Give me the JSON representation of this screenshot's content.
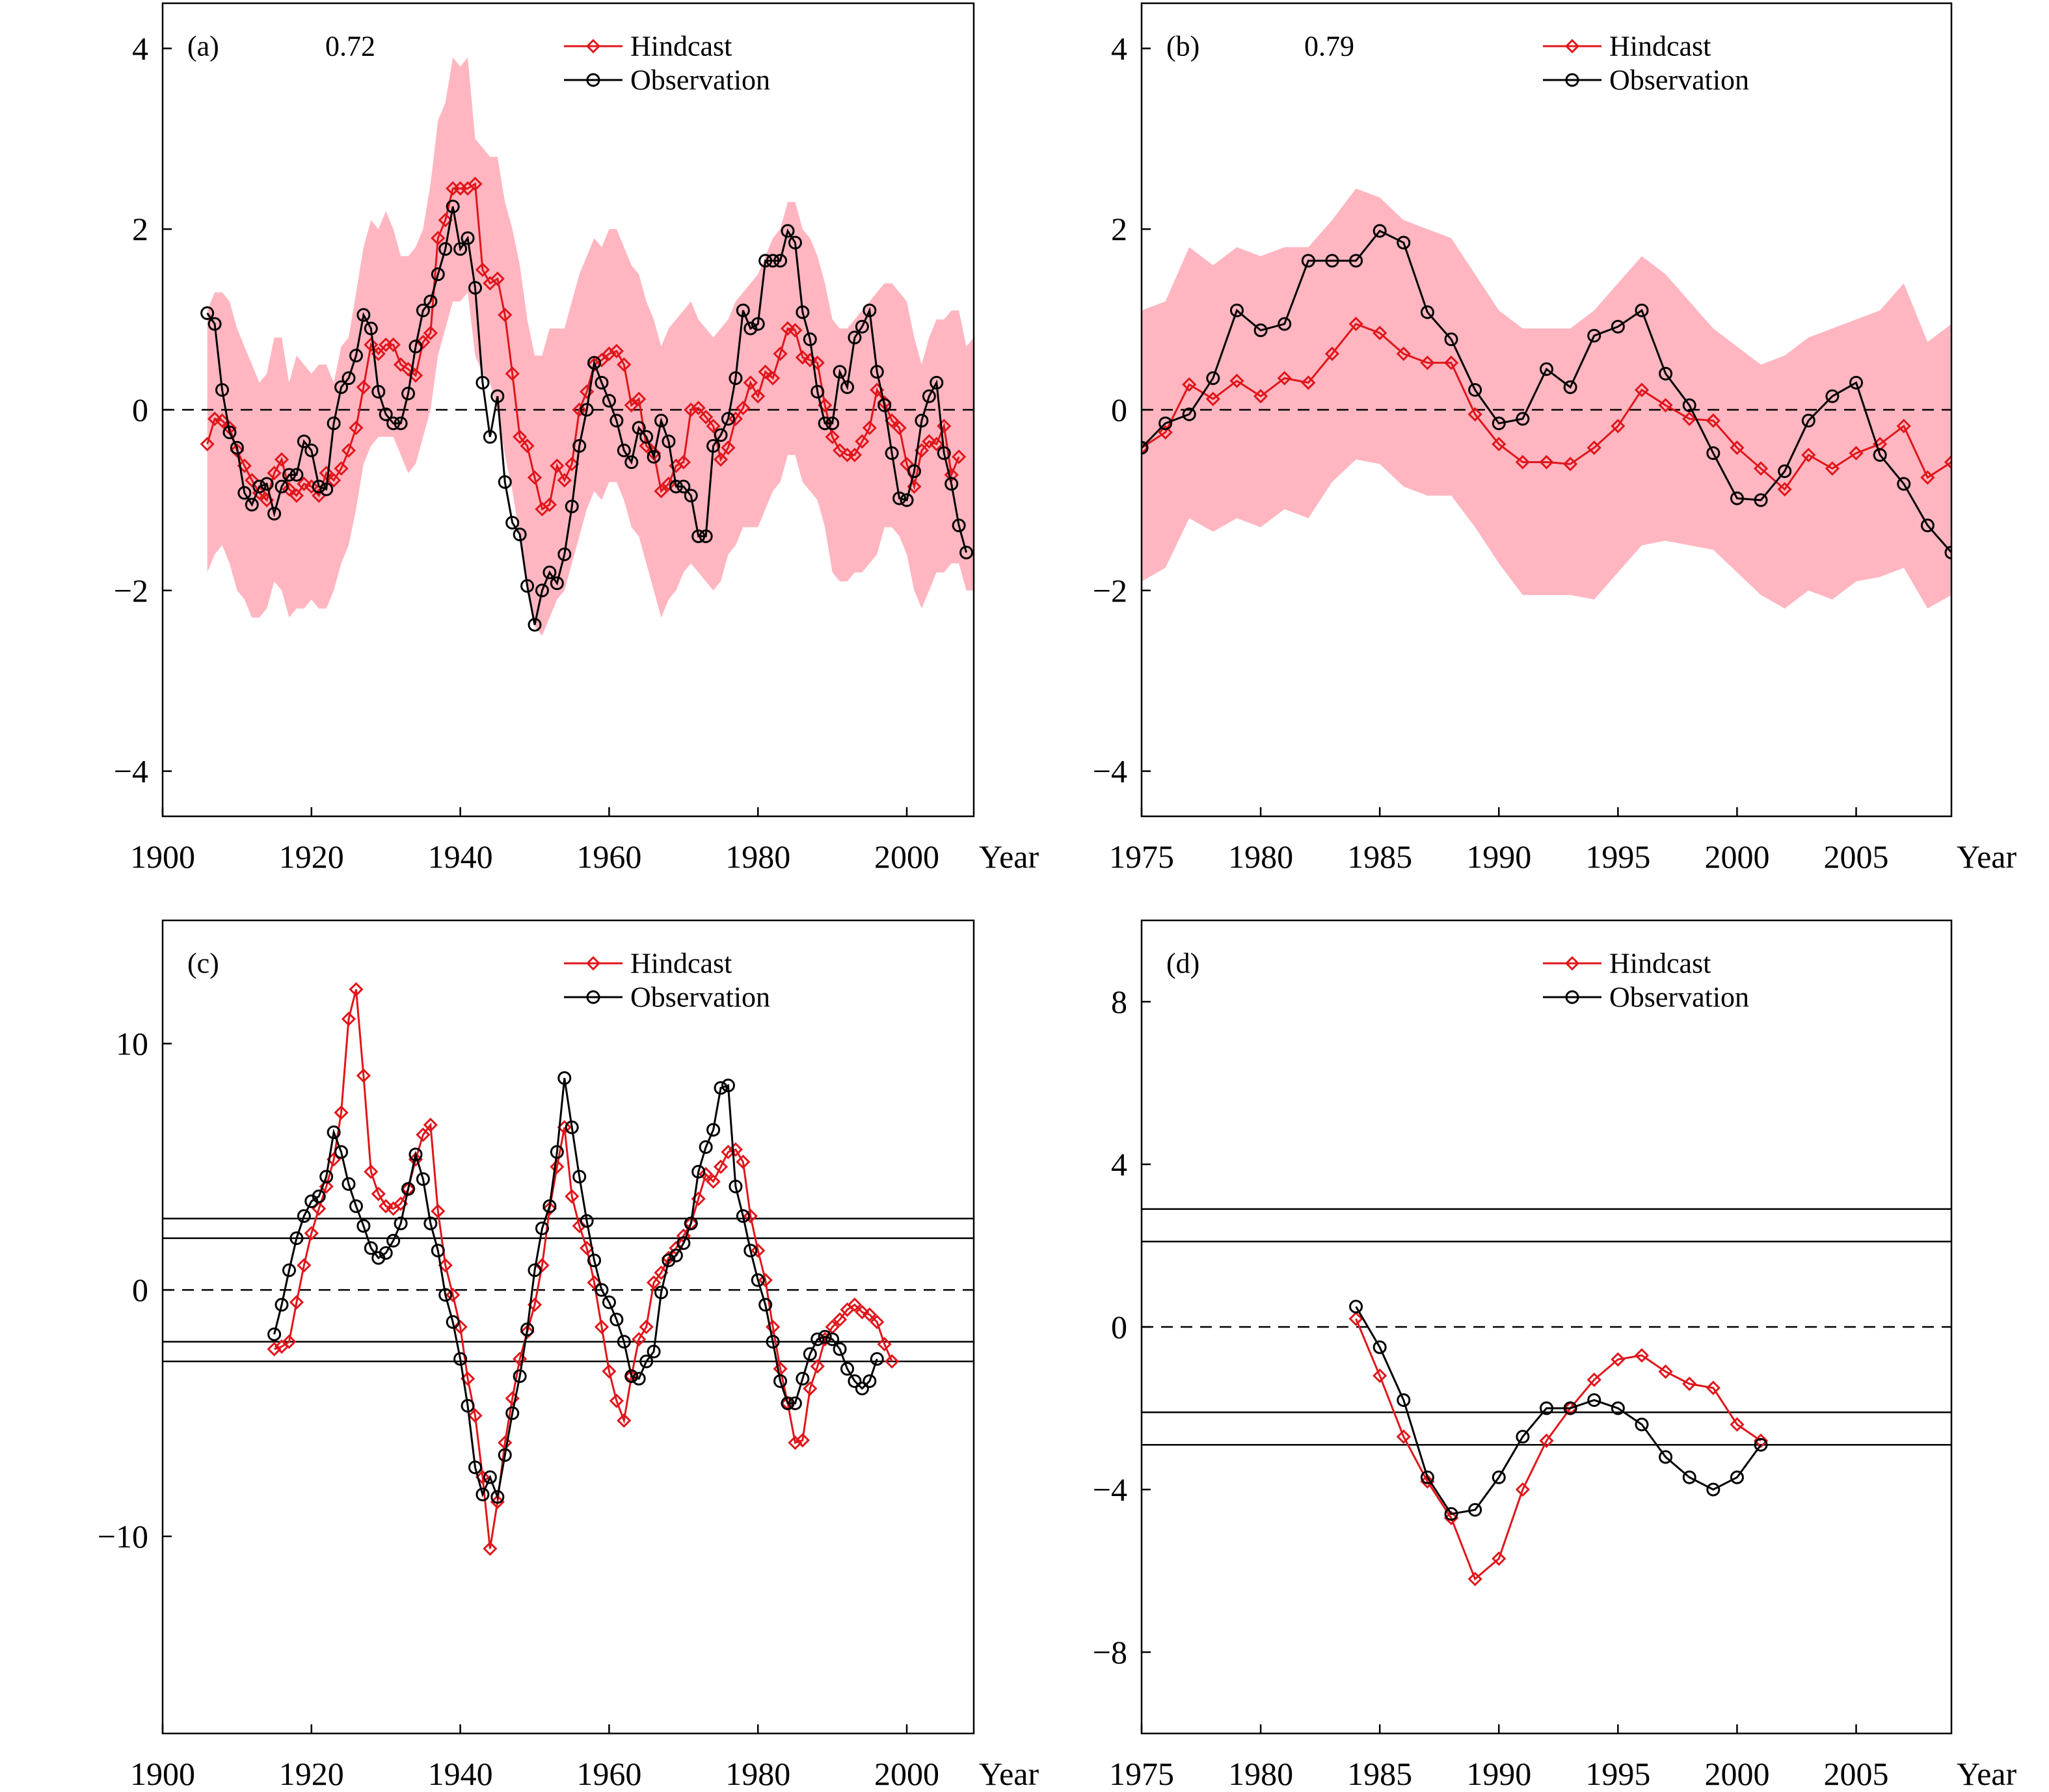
{
  "legend": {
    "hindcast": "Hindcast",
    "observation": "Observation"
  },
  "colors": {
    "hindcast": "#e0161b",
    "observation": "#000000",
    "band": "#ffb6c1"
  },
  "chart_data": [
    {
      "type": "line",
      "panel_label": "(a)",
      "correlation_text": "0.72",
      "xlabel": "Year",
      "ylabel": "",
      "xlim": [
        1900,
        2009
      ],
      "ylim": [
        -4.5,
        4.5
      ],
      "xticks": [
        1900,
        1920,
        1940,
        1960,
        1980,
        2000
      ],
      "yticks": [
        4,
        2,
        0,
        -2,
        -4
      ],
      "ytick_labels": [
        "4",
        "2",
        "0",
        "−2",
        "−4"
      ],
      "zero_line": true,
      "hlines": [],
      "x_start": 1906,
      "series": [
        {
          "name": "Hindcast",
          "values": [
            -0.38,
            -0.1,
            -0.12,
            -0.2,
            -0.45,
            -0.62,
            -0.78,
            -0.92,
            -1.0,
            -0.7,
            -0.55,
            -0.88,
            -0.95,
            -0.82,
            -0.85,
            -0.95,
            -0.7,
            -0.78,
            -0.65,
            -0.45,
            -0.2,
            0.25,
            0.72,
            0.62,
            0.72,
            0.72,
            0.5,
            0.45,
            0.38,
            0.75,
            0.85,
            1.9,
            2.1,
            2.45,
            2.45,
            2.45,
            2.5,
            1.55,
            1.4,
            1.45,
            1.05,
            0.4,
            -0.3,
            -0.4,
            -0.75,
            -1.1,
            -1.05,
            -0.62,
            -0.78,
            -0.6,
            0.0,
            0.2,
            0.5,
            0.55,
            0.62,
            0.65,
            0.5,
            0.05,
            0.12,
            -0.4,
            -0.48,
            -0.9,
            -0.82,
            -0.62,
            -0.58,
            0.0,
            0.02,
            -0.08,
            -0.18,
            -0.55,
            -0.42,
            -0.1,
            0.02,
            0.3,
            0.15,
            0.42,
            0.35,
            0.62,
            0.9,
            0.88,
            0.58,
            0.55,
            0.52,
            0.05,
            -0.3,
            -0.45,
            -0.5,
            -0.5,
            -0.35,
            -0.2,
            0.22,
            0.08,
            -0.12,
            -0.2,
            -0.6,
            -0.85,
            -0.45,
            -0.35,
            -0.38,
            -0.18,
            -0.72,
            -0.52
          ]
        },
        {
          "name": "Observation",
          "values": [
            1.07,
            0.95,
            0.22,
            -0.25,
            -0.42,
            -0.92,
            -1.05,
            -0.85,
            -0.82,
            -1.15,
            -0.85,
            -0.72,
            -0.72,
            -0.35,
            -0.45,
            -0.85,
            -0.88,
            -0.15,
            0.25,
            0.35,
            0.6,
            1.05,
            0.9,
            0.2,
            -0.05,
            -0.15,
            -0.15,
            0.18,
            0.7,
            1.1,
            1.2,
            1.5,
            1.78,
            2.25,
            1.78,
            1.9,
            1.35,
            0.3,
            -0.3,
            0.15,
            -0.8,
            -1.25,
            -1.38,
            -1.95,
            -2.38,
            -2.0,
            -1.8,
            -1.92,
            -1.6,
            -1.07,
            -0.4,
            0.0,
            0.52,
            0.3,
            0.1,
            -0.12,
            -0.45,
            -0.58,
            -0.2,
            -0.3,
            -0.52,
            -0.12,
            -0.35,
            -0.85,
            -0.85,
            -0.95,
            -1.4,
            -1.4,
            -0.4,
            -0.28,
            -0.1,
            0.35,
            1.1,
            0.9,
            0.95,
            1.65,
            1.65,
            1.65,
            1.98,
            1.85,
            1.08,
            0.78,
            0.2,
            -0.15,
            -0.15,
            0.42,
            0.25,
            0.8,
            0.92,
            1.1,
            0.42,
            0.05,
            -0.48,
            -0.98,
            -1.0,
            -0.68,
            -0.12,
            0.15,
            0.3,
            -0.48,
            -0.82,
            -1.28,
            -1.58
          ]
        }
      ],
      "band": {
        "x": [
          1906,
          1907,
          1908,
          1909,
          1910,
          1911,
          1912,
          1913,
          1914,
          1915,
          1916,
          1917,
          1918,
          1919,
          1920,
          1921,
          1922,
          1923,
          1924,
          1925,
          1926,
          1927,
          1928,
          1929,
          1930,
          1931,
          1932,
          1933,
          1934,
          1935,
          1936,
          1937,
          1938,
          1939,
          1940,
          1941,
          1942,
          1943,
          1944,
          1945,
          1946,
          1947,
          1948,
          1949,
          1950,
          1951,
          1952,
          1953,
          1954,
          1955,
          1956,
          1957,
          1958,
          1959,
          1960,
          1961,
          1962,
          1963,
          1964,
          1965,
          1966,
          1967,
          1968,
          1969,
          1970,
          1971,
          1972,
          1973,
          1974,
          1975,
          1976,
          1977,
          1978,
          1979,
          1980,
          1981,
          1982,
          1983,
          1984,
          1985,
          1986,
          1987,
          1988,
          1989,
          1990,
          1991,
          1992,
          1993,
          1994,
          1995,
          1996,
          1997,
          1998,
          1999,
          2000,
          2001,
          2002,
          2003,
          2004,
          2005,
          2006,
          2007,
          2008,
          2009
        ],
        "upper": [
          1.1,
          1.3,
          1.3,
          1.2,
          0.9,
          0.7,
          0.5,
          0.3,
          0.4,
          0.8,
          0.8,
          0.3,
          0.6,
          0.5,
          0.4,
          0.5,
          0.5,
          0.3,
          0.7,
          0.8,
          1.3,
          1.8,
          2.1,
          2.0,
          2.2,
          2.0,
          1.7,
          1.7,
          1.8,
          2.0,
          2.5,
          3.2,
          3.4,
          3.9,
          3.8,
          3.9,
          3.0,
          2.9,
          2.8,
          2.8,
          2.3,
          2.0,
          1.6,
          1.0,
          0.6,
          0.6,
          0.9,
          0.9,
          0.9,
          1.2,
          1.5,
          1.7,
          1.9,
          1.8,
          2.0,
          2.0,
          1.8,
          1.6,
          1.5,
          1.2,
          1.0,
          0.7,
          0.9,
          1.0,
          1.1,
          1.2,
          1.0,
          0.9,
          0.8,
          0.9,
          1.0,
          1.2,
          1.3,
          1.4,
          1.5,
          1.7,
          1.9,
          2.0,
          2.3,
          2.3,
          2.0,
          1.9,
          1.7,
          1.4,
          1.0,
          0.9,
          0.9,
          1.0,
          1.1,
          1.2,
          1.3,
          1.4,
          1.4,
          1.3,
          1.2,
          0.8,
          0.5,
          0.8,
          1.0,
          1.0,
          1.1,
          1.1,
          0.7,
          0.8
        ],
        "lower": [
          -1.8,
          -1.6,
          -1.5,
          -1.7,
          -2.0,
          -2.1,
          -2.3,
          -2.3,
          -2.2,
          -1.9,
          -2.0,
          -2.3,
          -2.2,
          -2.2,
          -2.1,
          -2.2,
          -2.2,
          -2.0,
          -1.7,
          -1.5,
          -1.1,
          -0.6,
          -0.4,
          -0.3,
          -0.3,
          -0.3,
          -0.5,
          -0.7,
          -0.6,
          -0.3,
          0.0,
          0.6,
          0.9,
          1.2,
          1.2,
          1.3,
          0.6,
          0.4,
          0.3,
          0.0,
          -0.5,
          -0.9,
          -1.4,
          -2.0,
          -2.4,
          -2.5,
          -2.3,
          -2.1,
          -2.0,
          -1.7,
          -1.4,
          -1.1,
          -0.9,
          -1.0,
          -0.8,
          -0.8,
          -1.0,
          -1.3,
          -1.4,
          -1.7,
          -2.0,
          -2.3,
          -2.1,
          -2.0,
          -1.8,
          -1.7,
          -1.8,
          -1.9,
          -2.0,
          -1.9,
          -1.6,
          -1.5,
          -1.3,
          -1.3,
          -1.3,
          -1.1,
          -0.9,
          -0.8,
          -0.5,
          -0.5,
          -0.8,
          -0.9,
          -1.0,
          -1.3,
          -1.8,
          -1.9,
          -1.9,
          -1.8,
          -1.8,
          -1.7,
          -1.6,
          -1.3,
          -1.3,
          -1.4,
          -1.6,
          -2.0,
          -2.2,
          -2.0,
          -1.8,
          -1.8,
          -1.7,
          -1.7,
          -2.0,
          -2.0
        ]
      }
    },
    {
      "type": "line",
      "panel_label": "(b)",
      "correlation_text": "0.79",
      "xlabel": "Year",
      "ylabel": "",
      "xlim": [
        1975,
        2009
      ],
      "ylim": [
        -4.5,
        4.5
      ],
      "xticks": [
        1975,
        1980,
        1985,
        1990,
        1995,
        2000,
        2005
      ],
      "yticks": [
        4,
        2,
        0,
        -2,
        -4
      ],
      "ytick_labels": [
        "4",
        "2",
        "0",
        "−2",
        "−4"
      ],
      "zero_line": true,
      "hlines": [],
      "x_start": 1975,
      "series": [
        {
          "name": "Hindcast",
          "values": [
            -0.42,
            -0.25,
            0.28,
            0.12,
            0.32,
            0.15,
            0.35,
            0.3,
            0.62,
            0.95,
            0.85,
            0.62,
            0.52,
            0.52,
            -0.05,
            -0.38,
            -0.58,
            -0.58,
            -0.6,
            -0.42,
            -0.18,
            0.22,
            0.05,
            -0.1,
            -0.12,
            -0.42,
            -0.65,
            -0.88,
            -0.5,
            -0.65,
            -0.48,
            -0.38,
            -0.18,
            -0.75,
            -0.58
          ]
        },
        {
          "name": "Observation",
          "values": [
            -0.42,
            -0.15,
            -0.05,
            0.35,
            1.1,
            0.88,
            0.95,
            1.65,
            1.65,
            1.65,
            1.98,
            1.85,
            1.08,
            0.78,
            0.22,
            -0.15,
            -0.1,
            0.45,
            0.25,
            0.82,
            0.92,
            1.1,
            0.4,
            0.05,
            -0.48,
            -0.98,
            -1.0,
            -0.68,
            -0.12,
            0.15,
            0.3,
            -0.5,
            -0.82,
            -1.28,
            -1.58
          ]
        }
      ],
      "band": {
        "x": [
          1975,
          1976,
          1977,
          1978,
          1979,
          1980,
          1981,
          1982,
          1983,
          1984,
          1985,
          1986,
          1987,
          1988,
          1989,
          1990,
          1991,
          1992,
          1993,
          1994,
          1995,
          1996,
          1997,
          1998,
          1999,
          2000,
          2001,
          2002,
          2003,
          2004,
          2005,
          2006,
          2007,
          2008,
          2009
        ],
        "upper": [
          1.1,
          1.2,
          1.8,
          1.6,
          1.8,
          1.7,
          1.8,
          1.8,
          2.1,
          2.45,
          2.35,
          2.1,
          2.0,
          1.9,
          1.5,
          1.1,
          0.9,
          0.9,
          0.9,
          1.1,
          1.4,
          1.7,
          1.5,
          1.2,
          0.9,
          0.7,
          0.5,
          0.6,
          0.8,
          0.9,
          1.0,
          1.1,
          1.4,
          0.75,
          0.95
        ],
        "lower": [
          -1.9,
          -1.75,
          -1.2,
          -1.35,
          -1.2,
          -1.3,
          -1.1,
          -1.2,
          -0.8,
          -0.55,
          -0.6,
          -0.85,
          -0.95,
          -0.95,
          -1.3,
          -1.7,
          -2.05,
          -2.05,
          -2.05,
          -2.1,
          -1.8,
          -1.5,
          -1.45,
          -1.5,
          -1.55,
          -1.8,
          -2.05,
          -2.2,
          -2.0,
          -2.1,
          -1.9,
          -1.85,
          -1.75,
          -2.2,
          -2.05
        ]
      }
    },
    {
      "type": "line",
      "panel_label": "(c)",
      "correlation_text": "",
      "xlabel": "Year",
      "ylabel": "",
      "xlim": [
        1900,
        2009
      ],
      "ylim": [
        -18,
        15
      ],
      "xticks": [
        1900,
        1920,
        1940,
        1960,
        1980,
        2000
      ],
      "yticks": [
        10,
        0,
        -10
      ],
      "ytick_labels": [
        "10",
        "0",
        "−10"
      ],
      "zero_line": true,
      "hlines": [
        2.9,
        2.1,
        -2.1,
        -2.9
      ],
      "x_start": 1915,
      "series": [
        {
          "name": "Hindcast",
          "values": [
            -2.4,
            -2.3,
            -2.1,
            -0.5,
            1.0,
            2.3,
            3.3,
            4.2,
            5.3,
            7.2,
            11.0,
            12.2,
            8.7,
            4.8,
            3.9,
            3.4,
            3.3,
            3.5,
            4.1,
            5.3,
            6.3,
            6.7,
            3.2,
            1.0,
            -0.2,
            -1.5,
            -3.6,
            -5.1,
            -7.6,
            -10.5,
            -8.6,
            -6.2,
            -4.4,
            -2.8,
            -1.7,
            -0.6,
            1.0,
            3.3,
            5.0,
            6.6,
            3.8,
            2.6,
            1.7,
            0.3,
            -1.5,
            -3.3,
            -4.5,
            -5.3,
            -3.5,
            -2.0,
            -1.5,
            0.3,
            0.7,
            1.3,
            1.7,
            2.2,
            2.7,
            3.7,
            4.7,
            4.4,
            5.0,
            5.6,
            5.7,
            5.2,
            3.0,
            1.6,
            0.4,
            -1.5,
            -3.2,
            -4.6,
            -6.2,
            -6.1,
            -4.0,
            -3.1,
            -2.0,
            -1.5,
            -1.2,
            -0.8,
            -0.6,
            -0.9,
            -1.0,
            -1.3,
            -2.2,
            -2.9
          ]
        },
        {
          "name": "Observation",
          "values": [
            -1.8,
            -0.6,
            0.8,
            2.1,
            3.0,
            3.6,
            3.8,
            4.6,
            6.4,
            5.6,
            4.3,
            3.4,
            2.6,
            1.7,
            1.3,
            1.5,
            2.0,
            2.7,
            4.1,
            5.5,
            4.5,
            2.7,
            1.6,
            -0.2,
            -1.3,
            -2.8,
            -4.7,
            -7.2,
            -8.3,
            -7.6,
            -8.4,
            -6.7,
            -5.0,
            -3.5,
            -1.6,
            0.8,
            2.5,
            3.4,
            5.6,
            8.6,
            6.6,
            4.6,
            2.8,
            1.2,
            0.0,
            -0.5,
            -1.2,
            -2.1,
            -3.5,
            -3.6,
            -2.9,
            -2.5,
            -0.1,
            1.2,
            1.4,
            1.9,
            2.7,
            4.8,
            5.8,
            6.5,
            8.2,
            8.3,
            4.2,
            3.0,
            1.6,
            0.4,
            -0.6,
            -2.1,
            -3.7,
            -4.6,
            -4.6,
            -3.6,
            -2.6,
            -2.0,
            -1.9,
            -2.0,
            -2.4,
            -3.2,
            -3.7,
            -4.0,
            -3.7,
            -2.8
          ]
        }
      ]
    },
    {
      "type": "line",
      "panel_label": "(d)",
      "correlation_text": "",
      "xlabel": "Year",
      "ylabel": "",
      "xlim": [
        1975,
        2009
      ],
      "ylim": [
        -10,
        10
      ],
      "xticks": [
        1975,
        1980,
        1985,
        1990,
        1995,
        2000,
        2005
      ],
      "yticks": [
        8,
        4,
        0,
        -4,
        -8
      ],
      "ytick_labels": [
        "8",
        "4",
        "0",
        "−4",
        "−8"
      ],
      "zero_line": true,
      "hlines": [
        2.9,
        2.1,
        -2.1,
        -2.9
      ],
      "x_start": 1984,
      "series": [
        {
          "name": "Hindcast",
          "values": [
            0.2,
            -1.2,
            -2.7,
            -3.8,
            -4.7,
            -6.2,
            -5.7,
            -4.0,
            -2.8,
            -2.0,
            -1.3,
            -0.8,
            -0.7,
            -1.1,
            -1.4,
            -1.5,
            -2.4,
            -2.8
          ]
        },
        {
          "name": "Observation",
          "values": [
            0.5,
            -0.5,
            -1.8,
            -3.7,
            -4.6,
            -4.5,
            -3.7,
            -2.7,
            -2.0,
            -2.0,
            -1.8,
            -2.0,
            -2.4,
            -3.2,
            -3.7,
            -4.0,
            -3.7,
            -2.9
          ]
        }
      ]
    }
  ]
}
